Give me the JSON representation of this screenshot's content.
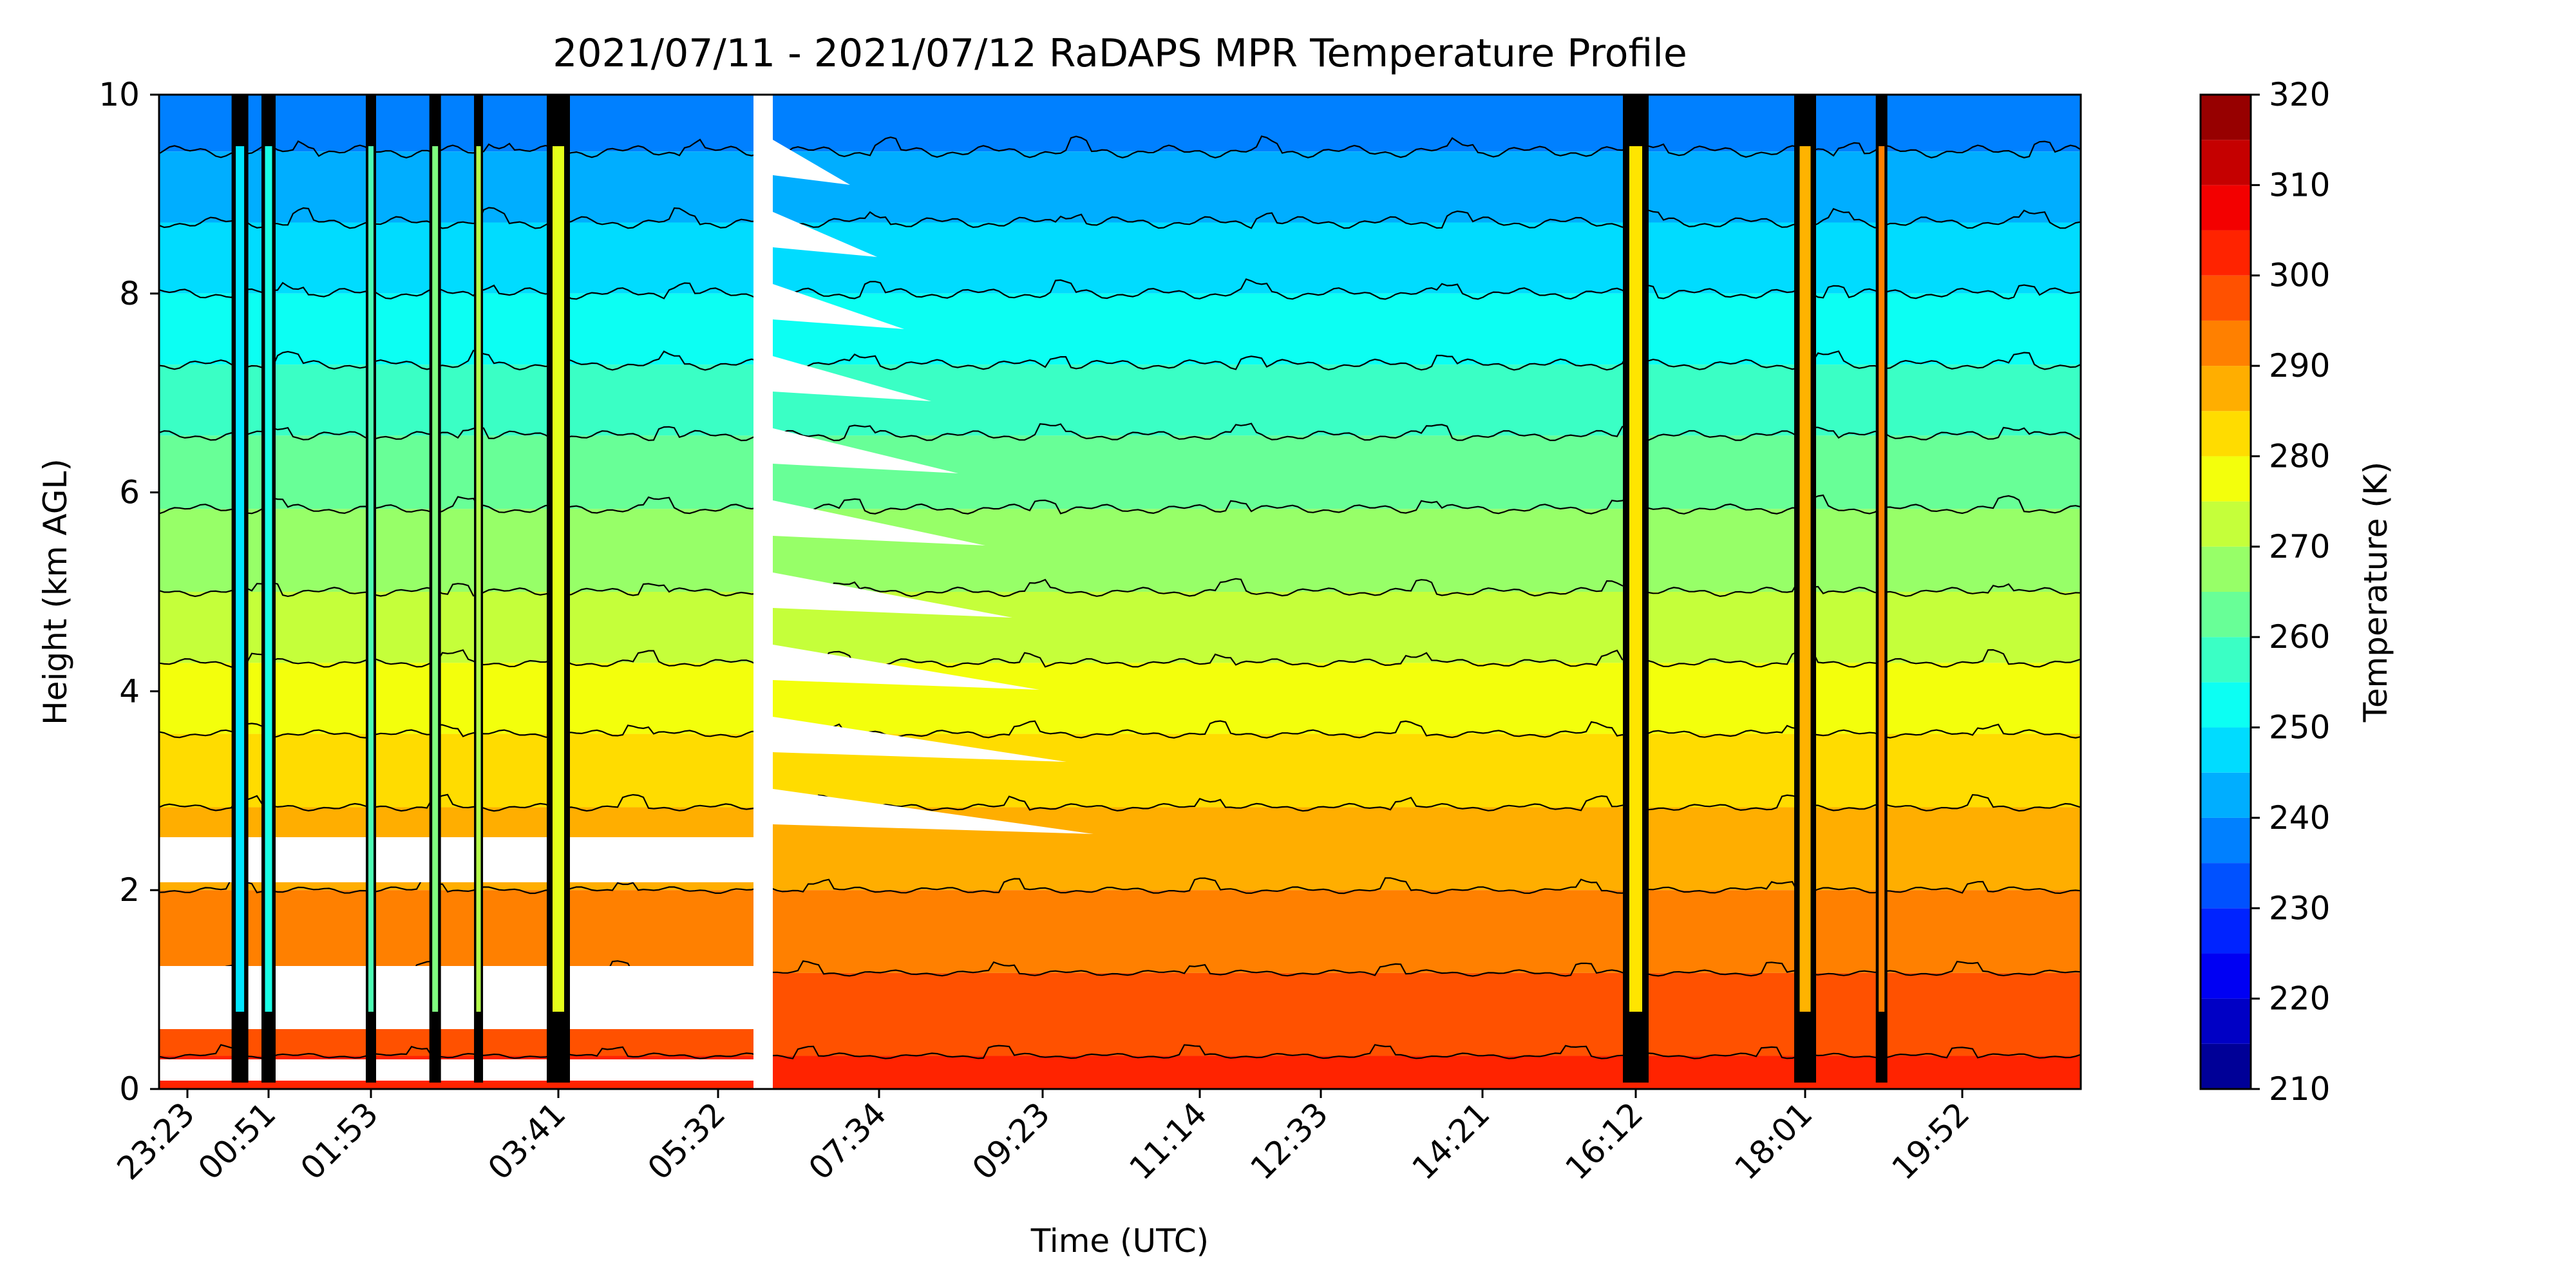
{
  "chart_data": {
    "type": "heatmap",
    "title": "2021/07/11 - 2021/07/12 RaDAPS MPR Temperature Profile",
    "xlabel": "Time (UTC)",
    "ylabel": "Height (km AGL)",
    "x_tick_labels": [
      "23:23",
      "00:51",
      "01:53",
      "03:41",
      "05:32",
      "07:34",
      "09:23",
      "11:14",
      "12:33",
      "14:21",
      "16:12",
      "18:01",
      "19:52"
    ],
    "y_ticks": [
      0,
      2,
      4,
      6,
      8,
      10
    ],
    "ylim": [
      0,
      10
    ],
    "colorbar": {
      "label": "Temperature (K)",
      "ticks": [
        210,
        220,
        230,
        240,
        250,
        260,
        270,
        280,
        290,
        300,
        310,
        320
      ],
      "range": [
        210,
        320
      ],
      "step": 5,
      "colormap": "jet"
    },
    "profile": {
      "levels_km": [
        0,
        1,
        2,
        3,
        4,
        5,
        6,
        7,
        8,
        9,
        10
      ],
      "temperature_K": [
        302,
        296,
        290,
        284,
        277,
        270,
        264,
        257,
        250,
        243,
        236
      ]
    },
    "data_gap": "05:32 - 07:34",
    "spike_columns": [
      "00:20",
      "00:51",
      "01:53",
      "02:30",
      "02:55",
      "03:41",
      "16:12",
      "18:01",
      "18:55"
    ],
    "grid": false,
    "legend": "none"
  }
}
